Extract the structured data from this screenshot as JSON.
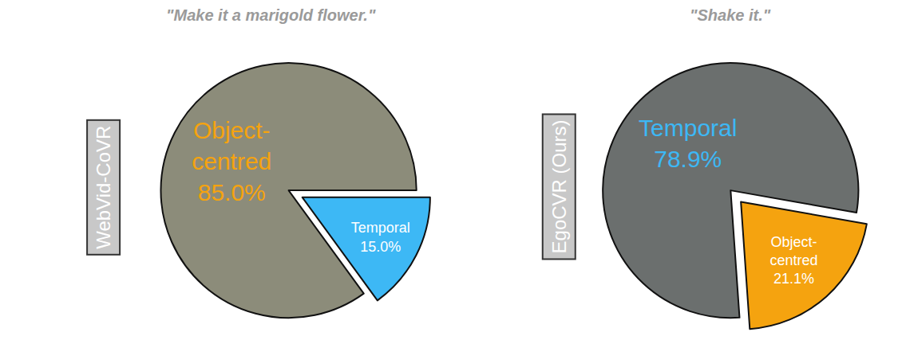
{
  "chart_data": [
    {
      "type": "pie",
      "title": "\"Make it a marigold flower.\"",
      "annotations": [
        "WebVid-CoVR"
      ],
      "categories": [
        "Object-centred",
        "Temporal"
      ],
      "values": [
        85.0,
        15.0
      ],
      "value_labels": [
        "85.0%",
        "15.0%"
      ],
      "colors": [
        "#8c8c7a",
        "#3db8f5"
      ],
      "data_labels": true
    },
    {
      "type": "pie",
      "title": "\"Shake it.\"",
      "annotations": [
        "EgoCVR (Ours)"
      ],
      "categories": [
        "Temporal",
        "Object-centred"
      ],
      "values": [
        78.9,
        21.1
      ],
      "value_labels": [
        "78.9%",
        "21.1%"
      ],
      "colors": [
        "#6b6f6e",
        "#f5a30f"
      ],
      "data_labels": true
    }
  ]
}
